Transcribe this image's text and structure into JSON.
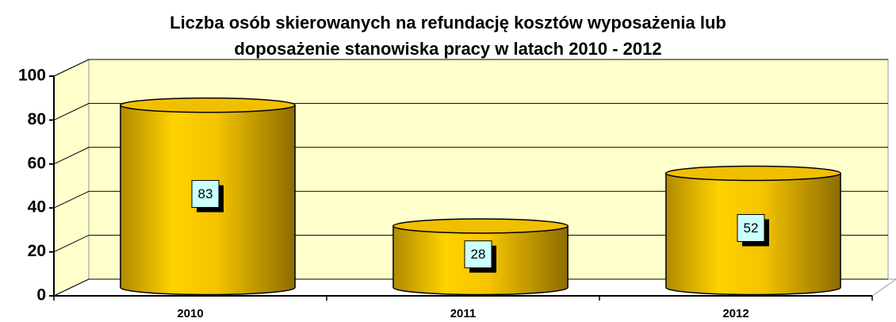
{
  "chart_data": {
    "type": "cylinder",
    "title": "Liczba osób skierowanych na refundację kosztów wyposażenia lub",
    "subtitle": "doposażenie stanowiska pracy w latach 2010 - 2012",
    "categories": [
      "2010",
      "2011",
      "2012"
    ],
    "values": [
      83,
      28,
      52
    ],
    "color": "#e8b800",
    "ylim": [
      0,
      100
    ],
    "yticks": [
      0,
      20,
      40,
      60,
      80,
      100
    ],
    "grid": true
  }
}
